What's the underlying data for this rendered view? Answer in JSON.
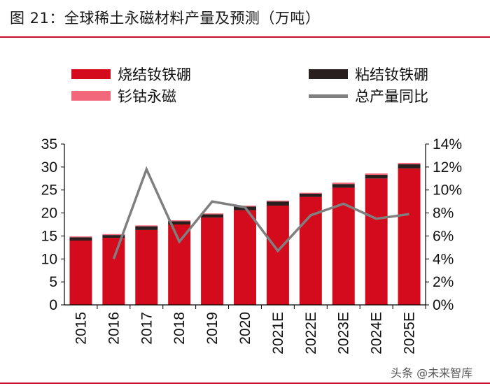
{
  "header": {
    "title": "图 21：全球稀土永磁材料产量及预测（万吨）"
  },
  "watermark": "头条 @未来智库",
  "colors": {
    "sintered": "#d40b1c",
    "bonded": "#2a1f1f",
    "smco": "#f2677a",
    "line": "#7f7f7f",
    "brand": "#c8102e"
  },
  "chart_data": {
    "type": "bar",
    "title": "全球稀土永磁材料产量及预测（万吨）",
    "categories": [
      "2015",
      "2016",
      "2017",
      "2018",
      "2019",
      "2020",
      "2021E",
      "2022E",
      "2023E",
      "2024E",
      "2025E"
    ],
    "series": [
      {
        "name": "烧结钕铁硼",
        "kind": "stacked-bar",
        "axis": "left",
        "values": [
          14.0,
          14.6,
          16.3,
          17.5,
          19.0,
          20.6,
          21.6,
          23.5,
          25.5,
          27.5,
          29.7
        ]
      },
      {
        "name": "粘结钕铁硼",
        "kind": "stacked-bar",
        "axis": "left",
        "values": [
          0.7,
          0.6,
          0.8,
          0.7,
          0.7,
          0.8,
          0.9,
          0.7,
          0.8,
          0.8,
          0.9
        ]
      },
      {
        "name": "钐钴永磁",
        "kind": "stacked-bar",
        "axis": "left",
        "values": [
          0.2,
          0.2,
          0.2,
          0.2,
          0.2,
          0.2,
          0.2,
          0.2,
          0.3,
          0.3,
          0.3
        ]
      },
      {
        "name": "总产量同比",
        "kind": "line",
        "axis": "right",
        "values": [
          null,
          4.0,
          11.8,
          5.5,
          9.0,
          8.5,
          4.7,
          7.8,
          8.8,
          7.5,
          7.9
        ]
      }
    ],
    "legend": [
      "烧结钕铁硼",
      "粘结钕铁硼",
      "钐钴永磁",
      "总产量同比"
    ],
    "ylim_left": [
      0,
      35
    ],
    "yticks_left": [
      "0",
      "5",
      "10",
      "15",
      "20",
      "25",
      "30",
      "35"
    ],
    "ylim_right": [
      0,
      14
    ],
    "yticks_right": [
      "0%",
      "2%",
      "4%",
      "6%",
      "8%",
      "10%",
      "12%",
      "14%"
    ],
    "grid": false
  }
}
